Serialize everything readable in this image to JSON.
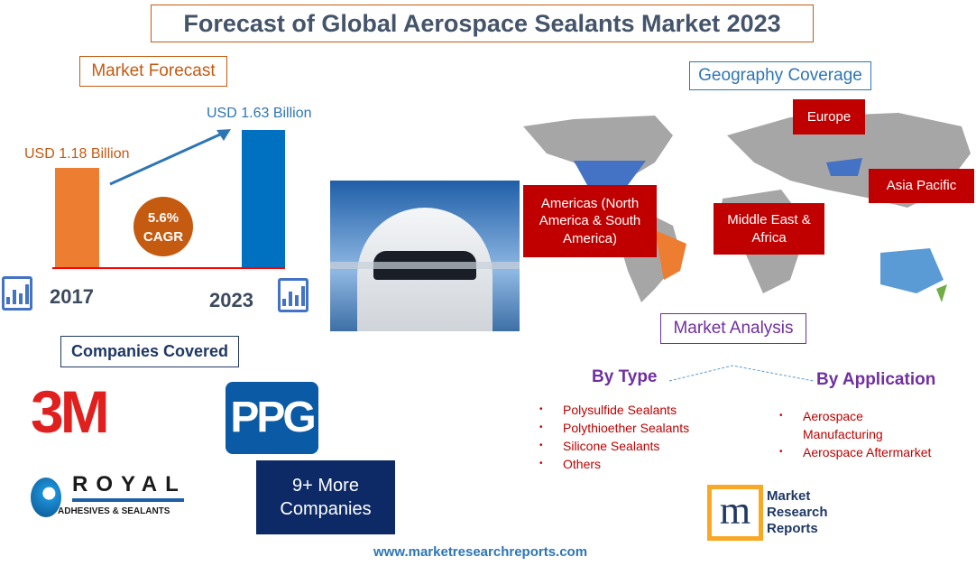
{
  "title": "Forecast of Global Aerospace Sealants Market 2023",
  "market_forecast": {
    "label": "Market Forecast",
    "value_2017": "USD 1.18 Billion",
    "value_2023": "USD 1.63 Billion",
    "cagr_value": "5.6%",
    "cagr_label": "CAGR",
    "year_start": "2017",
    "year_end": "2023",
    "colors": {
      "bar_2017": "#ed7d31",
      "bar_2023": "#0070c0",
      "cagr": "#c55a11",
      "baseline": "#ff0000"
    }
  },
  "chart_data": {
    "type": "bar",
    "categories": [
      "2017",
      "2023"
    ],
    "values": [
      1.18,
      1.63
    ],
    "ylabel": "",
    "xlabel": ""
  },
  "geography": {
    "label": "Geography Coverage",
    "regions": [
      "Europe",
      "Asia Pacific",
      "Americas (North America & South America)",
      "Middle East & Africa"
    ]
  },
  "companies": {
    "label": "Companies Covered",
    "logos": [
      "3M",
      "PPG",
      "ROYAL",
      "ADHESIVES & SEALANTS"
    ],
    "more": "9+ More Companies"
  },
  "analysis": {
    "label": "Market Analysis",
    "by_type": {
      "label": "By Type",
      "items": [
        "Polysulfide Sealants",
        "Polythioether Sealants",
        "Silicone Sealants",
        "Others"
      ]
    },
    "by_application": {
      "label": "By Application",
      "items": [
        "Aerospace Manufacturing",
        "Aerospace Aftermarket"
      ]
    }
  },
  "brand": {
    "logo_text": [
      "Market",
      "Research",
      "Reports"
    ],
    "url": "www.marketresearchreports.com"
  }
}
